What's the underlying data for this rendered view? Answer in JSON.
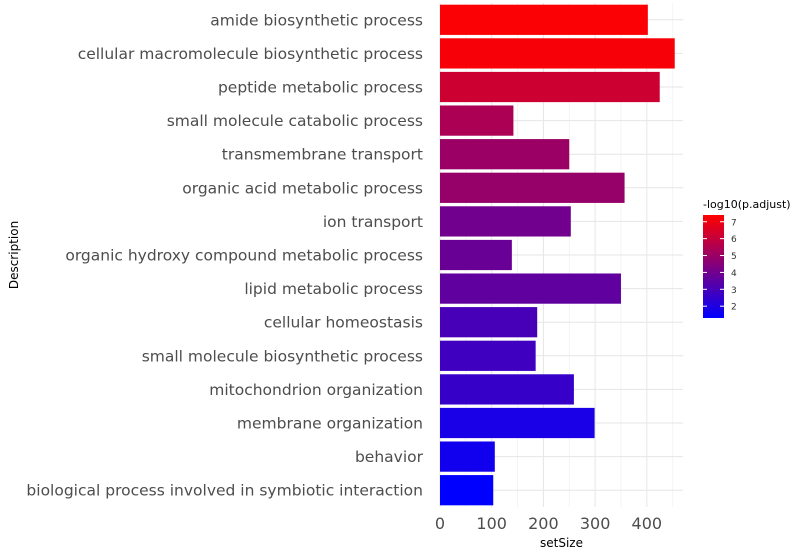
{
  "chart_data": {
    "type": "bar",
    "orientation": "horizontal",
    "xlabel": "setSize",
    "ylabel": "Description",
    "xlim": [
      0,
      470
    ],
    "x_ticks": [
      0,
      100,
      200,
      300,
      400
    ],
    "grid": true,
    "categories": [
      "amide biosynthetic process",
      "cellular macromolecule biosynthetic process",
      "peptide metabolic process",
      "small molecule catabolic process",
      "transmembrane transport",
      "organic acid metabolic process",
      "ion transport",
      "organic hydroxy compound metabolic process",
      "lipid metabolic process",
      "cellular homeostasis",
      "small molecule biosynthetic process",
      "mitochondrion organization",
      "membrane organization",
      "behavior",
      "biological process involved in symbiotic interaction"
    ],
    "values": [
      402,
      454,
      425,
      142,
      250,
      357,
      253,
      139,
      350,
      188,
      185,
      259,
      299,
      106,
      103
    ],
    "color_values": [
      7.3,
      7.2,
      6.2,
      5.4,
      5.0,
      4.9,
      4.0,
      3.8,
      3.6,
      3.0,
      2.8,
      2.6,
      1.9,
      1.7,
      1.3
    ],
    "legend": {
      "title": "-log10(p.adjust)",
      "ticks": [
        2,
        3,
        4,
        5,
        6,
        7
      ],
      "range": [
        1.3,
        7.4
      ],
      "color_low": "#0000FF",
      "color_high": "#FF0000",
      "placement": "right"
    }
  }
}
